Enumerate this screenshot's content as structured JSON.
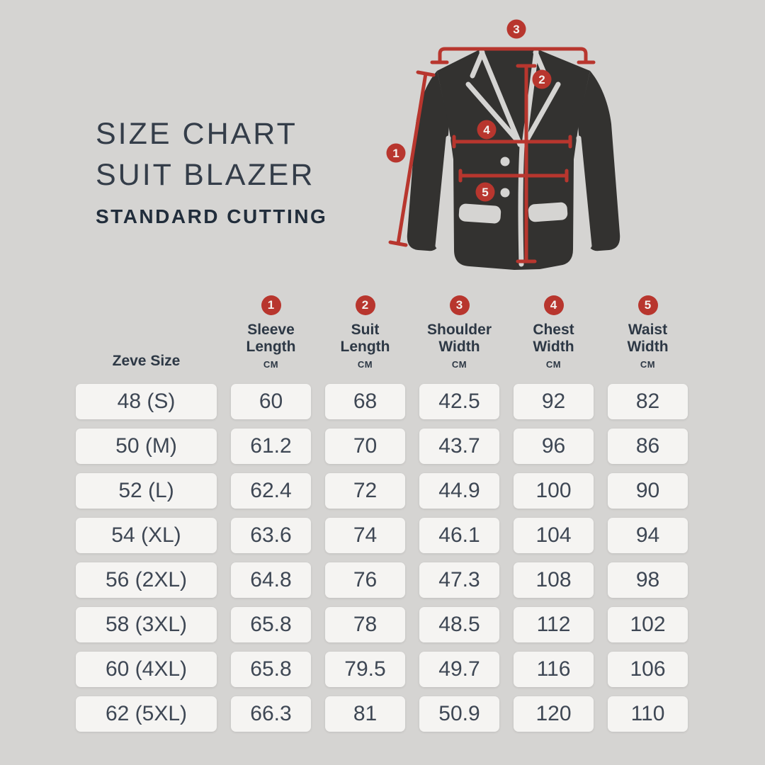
{
  "title": {
    "line1": "SIZE CHART",
    "line2": "SUIT BLAZER",
    "subtitle": "STANDARD CUTTING"
  },
  "diagram": {
    "markers": [
      "1",
      "2",
      "3",
      "4",
      "5"
    ]
  },
  "table": {
    "row_header": "Zeve Size",
    "unit": "CM",
    "columns": [
      {
        "n": "1",
        "label1": "Sleeve",
        "label2": "Length"
      },
      {
        "n": "2",
        "label1": "Suit",
        "label2": "Length"
      },
      {
        "n": "3",
        "label1": "Shoulder",
        "label2": "Width"
      },
      {
        "n": "4",
        "label1": "Chest",
        "label2": "Width"
      },
      {
        "n": "5",
        "label1": "Waist",
        "label2": "Width"
      }
    ],
    "rows": [
      {
        "size": "48 (S)",
        "values": [
          "60",
          "68",
          "42.5",
          "92",
          "82"
        ]
      },
      {
        "size": "50 (M)",
        "values": [
          "61.2",
          "70",
          "43.7",
          "96",
          "86"
        ]
      },
      {
        "size": "52 (L)",
        "values": [
          "62.4",
          "72",
          "44.9",
          "100",
          "90"
        ]
      },
      {
        "size": "54 (XL)",
        "values": [
          "63.6",
          "74",
          "46.1",
          "104",
          "94"
        ]
      },
      {
        "size": "56 (2XL)",
        "values": [
          "64.8",
          "76",
          "47.3",
          "108",
          "98"
        ]
      },
      {
        "size": "58 (3XL)",
        "values": [
          "65.8",
          "78",
          "48.5",
          "112",
          "102"
        ]
      },
      {
        "size": "60 (4XL)",
        "values": [
          "65.8",
          "79.5",
          "49.7",
          "116",
          "106"
        ]
      },
      {
        "size": "62 (5XL)",
        "values": [
          "66.3",
          "81",
          "50.9",
          "120",
          "110"
        ]
      }
    ]
  },
  "chart_data": {
    "type": "table",
    "title": "SIZE CHART SUIT BLAZER — STANDARD CUTTING",
    "columns": [
      "Zeve Size",
      "Sleeve Length (CM)",
      "Suit Length (CM)",
      "Shoulder Width (CM)",
      "Chest Width (CM)",
      "Waist Width (CM)"
    ],
    "rows": [
      [
        "48 (S)",
        60,
        68,
        42.5,
        92,
        82
      ],
      [
        "50 (M)",
        61.2,
        70,
        43.7,
        96,
        86
      ],
      [
        "52 (L)",
        62.4,
        72,
        44.9,
        100,
        90
      ],
      [
        "54 (XL)",
        63.6,
        74,
        46.1,
        104,
        94
      ],
      [
        "56 (2XL)",
        64.8,
        76,
        47.3,
        108,
        98
      ],
      [
        "58 (3XL)",
        65.8,
        78,
        48.5,
        112,
        102
      ],
      [
        "60 (4XL)",
        65.8,
        79.5,
        49.7,
        116,
        106
      ],
      [
        "62 (5XL)",
        66.3,
        81,
        50.9,
        120,
        110
      ]
    ],
    "measurement_markers": [
      {
        "n": 1,
        "meaning": "Sleeve Length"
      },
      {
        "n": 2,
        "meaning": "Suit Length"
      },
      {
        "n": 3,
        "meaning": "Shoulder Width"
      },
      {
        "n": 4,
        "meaning": "Chest Width"
      },
      {
        "n": 5,
        "meaning": "Waist Width"
      }
    ]
  },
  "colors": {
    "background": "#d5d4d2",
    "accent_red": "#b8362e",
    "cell_bg": "#f5f4f2",
    "text_dark": "#2d3845",
    "title_text": "#343d49",
    "jacket": "#333230"
  }
}
